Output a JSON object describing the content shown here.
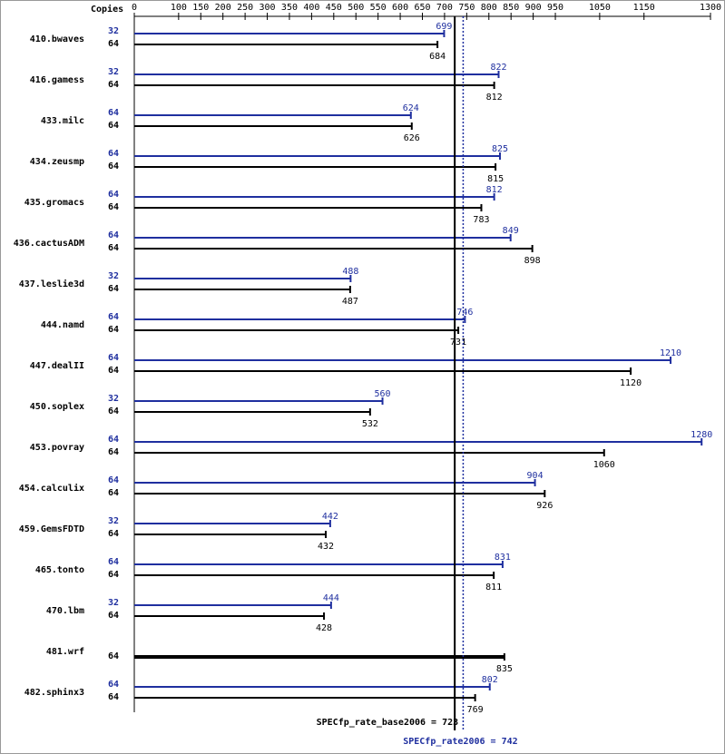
{
  "chart_data": {
    "type": "bar",
    "axis_label": "Copies",
    "categories": [
      "410.bwaves",
      "416.gamess",
      "433.milc",
      "434.zeusmp",
      "435.gromacs",
      "436.cactusADM",
      "437.leslie3d",
      "444.namd",
      "447.dealII",
      "450.soplex",
      "453.povray",
      "454.calculix",
      "459.GemsFDTD",
      "465.tonto",
      "470.lbm",
      "481.wrf",
      "482.sphinx3"
    ],
    "series": [
      {
        "color": "#1f2f9f",
        "copies": [
          32,
          32,
          64,
          64,
          64,
          64,
          32,
          64,
          64,
          32,
          64,
          64,
          32,
          64,
          32,
          null,
          64
        ],
        "values": [
          699,
          822,
          624,
          825,
          812,
          849,
          488,
          746,
          1210,
          560,
          1280,
          904,
          442,
          831,
          444,
          null,
          802
        ]
      },
      {
        "color": "#000000",
        "copies": [
          64,
          64,
          64,
          64,
          64,
          64,
          64,
          64,
          64,
          64,
          64,
          64,
          64,
          64,
          64,
          64,
          64
        ],
        "values": [
          684,
          812,
          626,
          815,
          783,
          898,
          487,
          731,
          1120,
          532,
          1060,
          926,
          432,
          811,
          428,
          835,
          769
        ]
      }
    ],
    "xlim": [
      0,
      1300
    ],
    "xticks": [
      0,
      100,
      150,
      200,
      250,
      300,
      350,
      400,
      450,
      500,
      550,
      600,
      650,
      700,
      750,
      800,
      850,
      900,
      950,
      1050,
      1150,
      1300
    ],
    "reference_lines": [
      {
        "value": 723,
        "label": "SPECfp_rate_base2006 = 723",
        "color": "#000000",
        "style": "solid"
      },
      {
        "value": 742,
        "label": "SPECfp_rate2006 = 742",
        "color": "#1f2f9f",
        "style": "dotted"
      }
    ]
  }
}
